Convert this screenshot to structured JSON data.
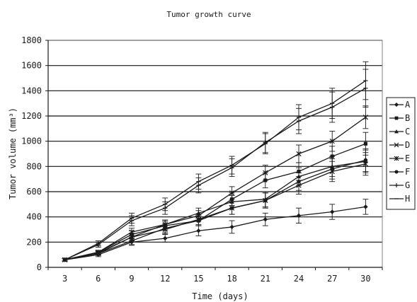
{
  "chart_data": {
    "type": "line",
    "title": "Tumor growth curve",
    "xlabel": "Time (days)",
    "ylabel": "Tumor volume (mm³)",
    "x": [
      3,
      6,
      9,
      12,
      15,
      18,
      21,
      24,
      27,
      30
    ],
    "x_tick_labels": [
      "3",
      "6",
      "9",
      "12",
      "15",
      "18",
      "21",
      "24",
      "27",
      "30"
    ],
    "ylim": [
      0,
      1800
    ],
    "y_ticks": [
      0,
      200,
      400,
      600,
      800,
      1000,
      1200,
      1400,
      1600,
      1800
    ],
    "y_tick_labels": [
      "0",
      "200",
      "400",
      "600",
      "800",
      "1000",
      "1200",
      "1400",
      "1600",
      "1800"
    ],
    "grid": "horizontal",
    "legend_position": "right",
    "series": [
      {
        "name": "A",
        "marker": "diamond",
        "values": [
          60,
          100,
          200,
          230,
          290,
          320,
          380,
          410,
          440,
          480
        ],
        "errors": [
          10,
          15,
          25,
          30,
          40,
          50,
          50,
          60,
          60,
          60
        ]
      },
      {
        "name": "B",
        "marker": "square",
        "values": [
          60,
          120,
          260,
          330,
          370,
          540,
          690,
          760,
          880,
          980
        ],
        "errors": [
          10,
          15,
          30,
          35,
          40,
          50,
          60,
          70,
          80,
          90
        ]
      },
      {
        "name": "C",
        "marker": "triangle",
        "values": [
          60,
          115,
          240,
          340,
          430,
          520,
          540,
          720,
          800,
          840
        ],
        "errors": [
          10,
          15,
          30,
          35,
          40,
          50,
          60,
          70,
          80,
          90
        ]
      },
      {
        "name": "D",
        "marker": "x",
        "values": [
          60,
          110,
          240,
          300,
          380,
          470,
          530,
          650,
          760,
          820
        ],
        "errors": [
          10,
          15,
          30,
          35,
          40,
          50,
          60,
          70,
          80,
          90
        ]
      },
      {
        "name": "E",
        "marker": "asterisk",
        "values": [
          60,
          120,
          280,
          340,
          410,
          590,
          750,
          900,
          1000,
          1190
        ],
        "errors": [
          10,
          15,
          30,
          35,
          40,
          50,
          60,
          70,
          80,
          90
        ]
      },
      {
        "name": "F",
        "marker": "circle",
        "values": [
          60,
          110,
          210,
          310,
          370,
          470,
          530,
          680,
          780,
          850
        ],
        "errors": [
          10,
          15,
          30,
          35,
          40,
          50,
          60,
          70,
          80,
          90
        ]
      },
      {
        "name": "G",
        "marker": "plus",
        "values": [
          60,
          180,
          370,
          470,
          650,
          790,
          990,
          1160,
          1270,
          1420
        ],
        "errors": [
          10,
          20,
          40,
          50,
          60,
          70,
          80,
          100,
          120,
          150
        ]
      },
      {
        "name": "H",
        "marker": "dash",
        "values": [
          60,
          190,
          390,
          500,
          680,
          810,
          980,
          1190,
          1300,
          1480
        ],
        "errors": [
          10,
          20,
          40,
          50,
          60,
          70,
          80,
          100,
          120,
          150
        ]
      }
    ]
  }
}
